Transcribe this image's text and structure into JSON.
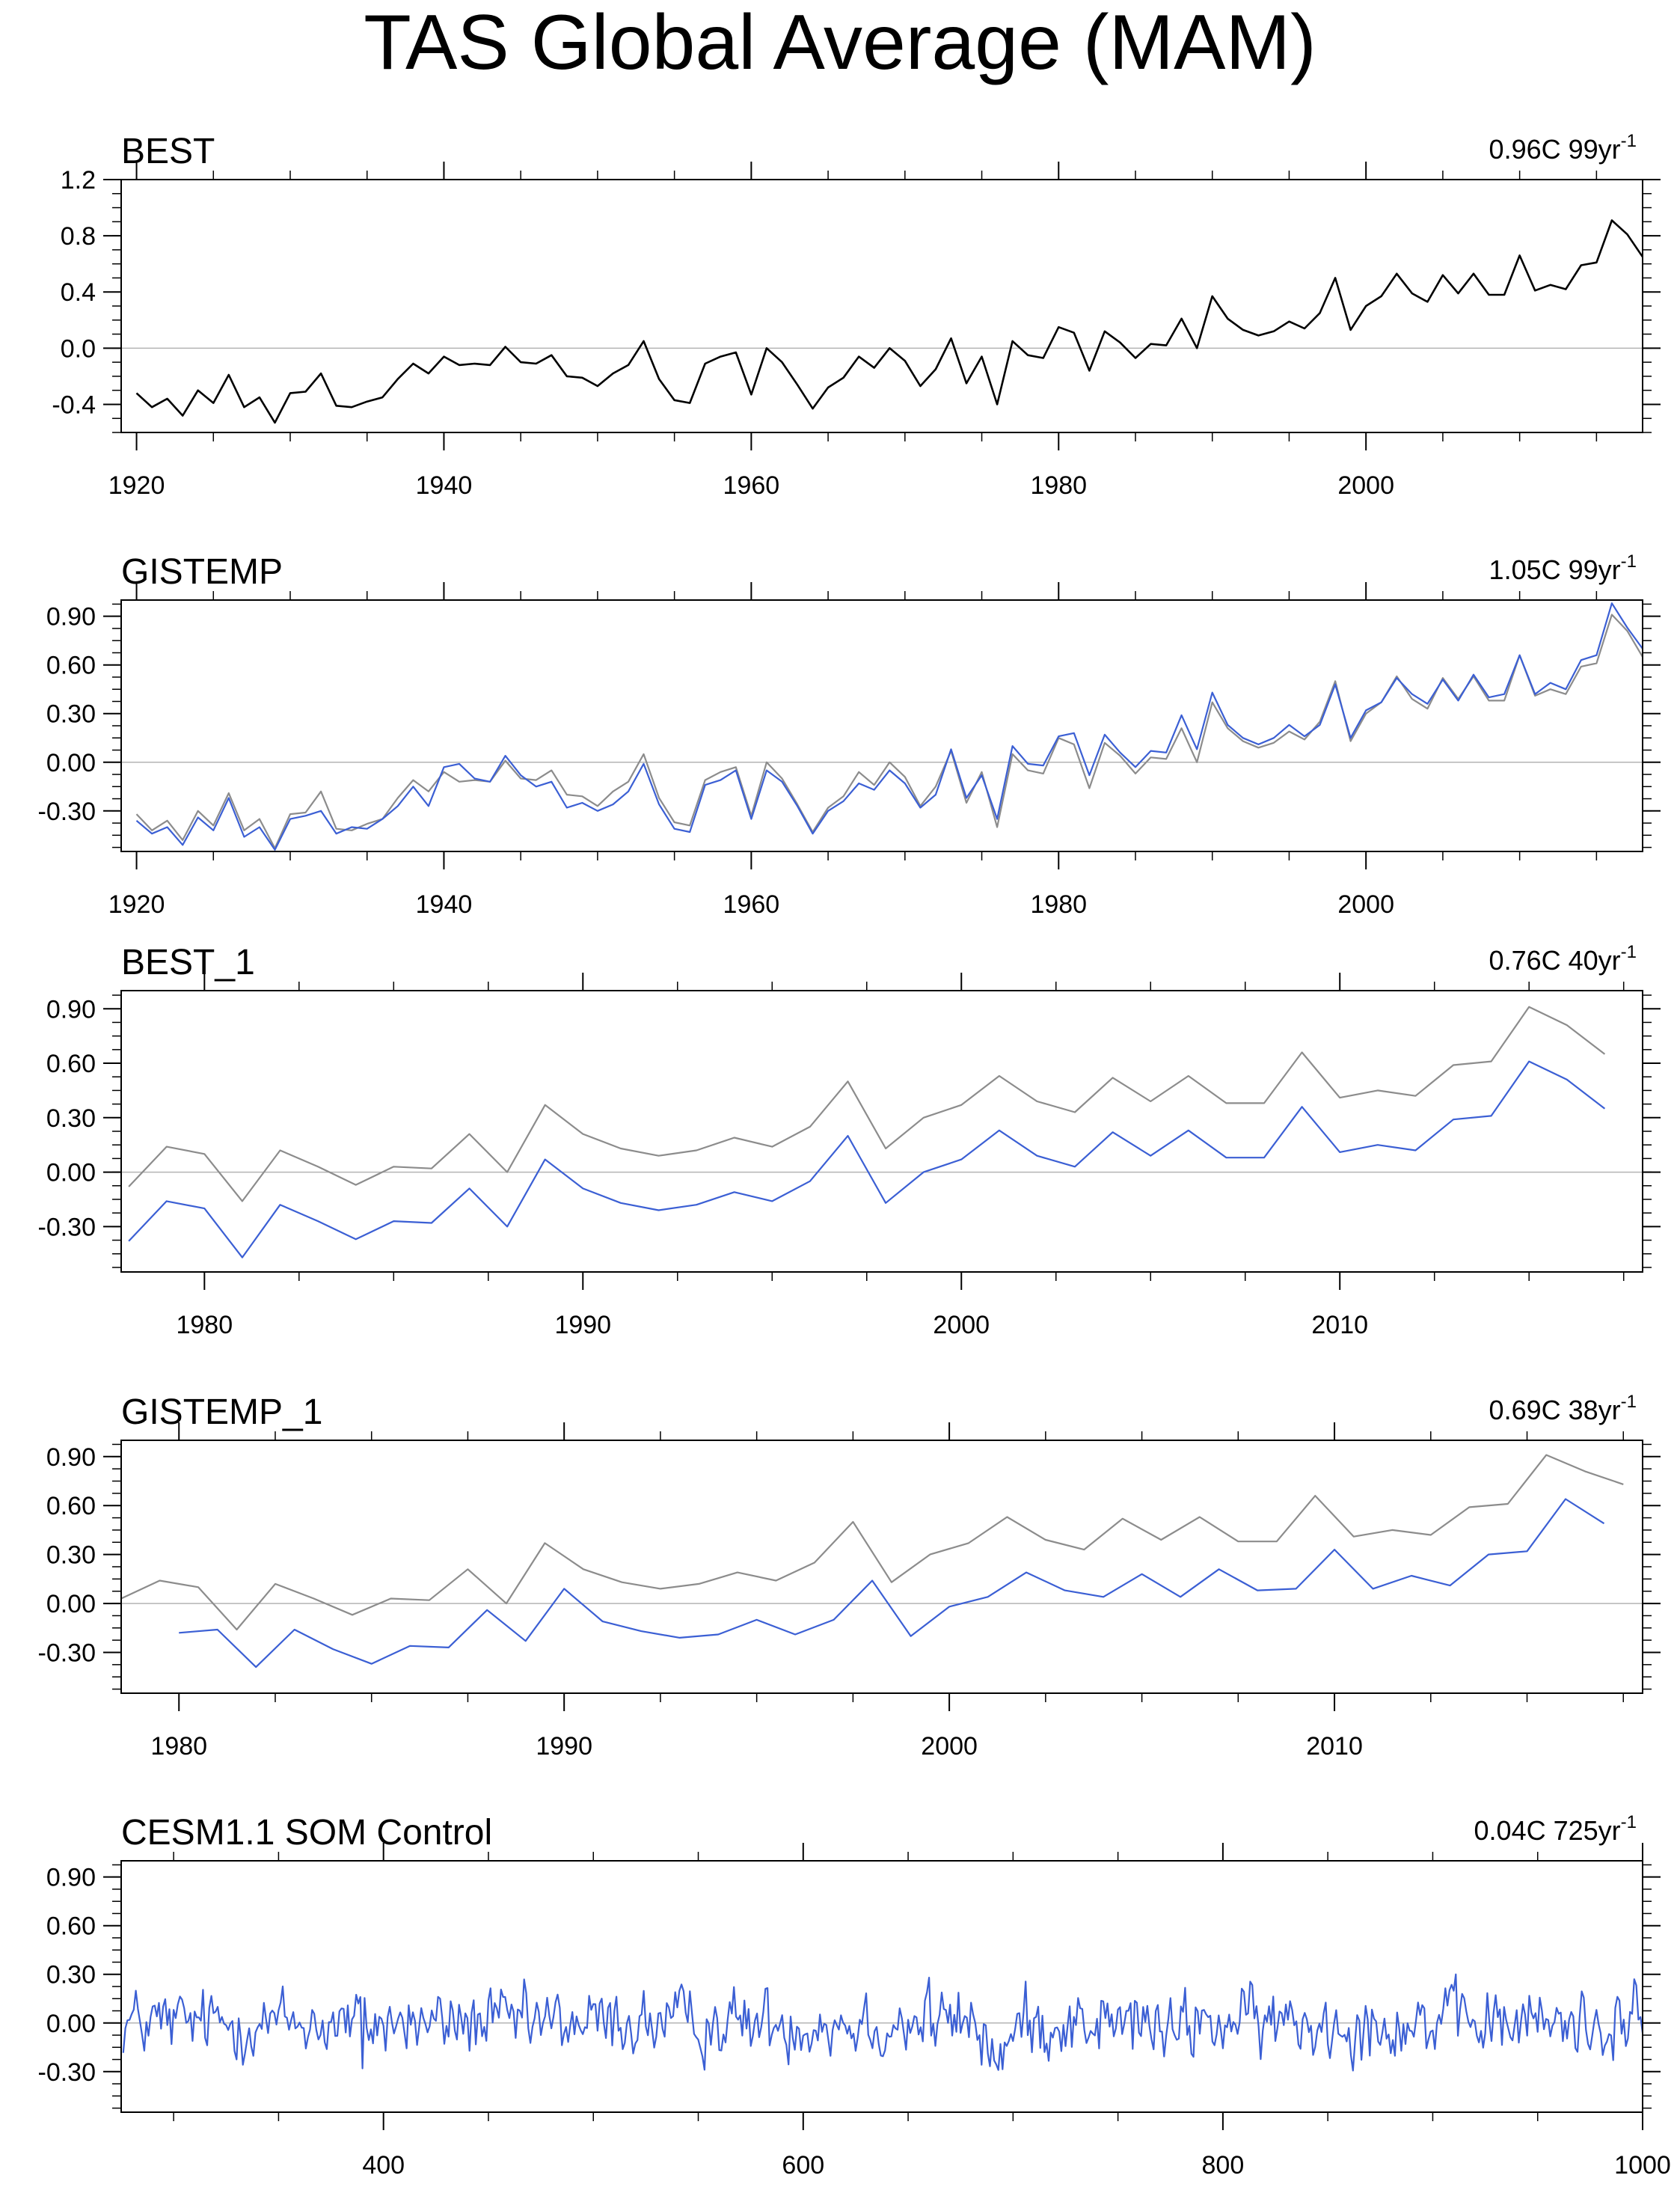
{
  "title": "TAS Global Average (MAM)",
  "colors": {
    "obs": "#000000",
    "ref": "#8c8c8c",
    "blue": "#3b5fd4",
    "zero": "#b4b4b4",
    "frame": "#000000"
  },
  "chart_data": [
    {
      "type": "line",
      "title": "BEST",
      "trend": "0.96C 99yr",
      "trend_sup": "-1",
      "xlim": [
        1919,
        2018
      ],
      "ylim": [
        -0.6,
        1.2
      ],
      "xticks": [
        1920,
        1940,
        1960,
        1980,
        2000
      ],
      "yticks": [
        -0.4,
        0.0,
        0.4,
        0.8,
        1.2
      ],
      "ytick_labels": [
        "-0.4",
        "0.0",
        "0.4",
        "0.8",
        "1.2"
      ],
      "x_start": 1920,
      "series": [
        {
          "name": "BEST",
          "color": "obs",
          "values": [
            -0.32,
            -0.42,
            -0.36,
            -0.48,
            -0.3,
            -0.39,
            -0.19,
            -0.42,
            -0.35,
            -0.53,
            -0.32,
            -0.31,
            -0.18,
            -0.41,
            -0.42,
            -0.38,
            -0.35,
            -0.22,
            -0.11,
            -0.18,
            -0.06,
            -0.12,
            -0.11,
            -0.12,
            0.01,
            -0.1,
            -0.11,
            -0.05,
            -0.2,
            -0.21,
            -0.27,
            -0.18,
            -0.12,
            0.05,
            -0.22,
            -0.37,
            -0.39,
            -0.11,
            -0.06,
            -0.03,
            -0.33,
            0.0,
            -0.1,
            -0.26,
            -0.43,
            -0.28,
            -0.21,
            -0.06,
            -0.14,
            0.0,
            -0.09,
            -0.27,
            -0.15,
            0.07,
            -0.25,
            -0.06,
            -0.4,
            0.05,
            -0.05,
            -0.07,
            0.15,
            0.11,
            -0.16,
            0.12,
            0.04,
            -0.07,
            0.03,
            0.02,
            0.21,
            0.0,
            0.37,
            0.21,
            0.13,
            0.09,
            0.12,
            0.19,
            0.14,
            0.25,
            0.5,
            0.13,
            0.3,
            0.37,
            0.53,
            0.39,
            0.33,
            0.52,
            0.39,
            0.53,
            0.38,
            0.38,
            0.66,
            0.41,
            0.45,
            0.42,
            0.59,
            0.61,
            0.91,
            0.81,
            0.65
          ]
        }
      ]
    },
    {
      "type": "line",
      "title": "GISTEMP",
      "trend": "1.05C 99yr",
      "trend_sup": "-1",
      "xlim": [
        1919,
        2018
      ],
      "ylim": [
        -0.55,
        1.0
      ],
      "xticks": [
        1920,
        1940,
        1960,
        1980,
        2000
      ],
      "yticks": [
        -0.3,
        0.0,
        0.3,
        0.6,
        0.9
      ],
      "ytick_labels": [
        "-0.30",
        "0.00",
        "0.30",
        "0.60",
        "0.90"
      ],
      "x_start": 1920,
      "series": [
        {
          "name": "BEST",
          "color": "ref",
          "values": [
            -0.32,
            -0.42,
            -0.36,
            -0.48,
            -0.3,
            -0.39,
            -0.19,
            -0.42,
            -0.35,
            -0.53,
            -0.32,
            -0.31,
            -0.18,
            -0.41,
            -0.42,
            -0.38,
            -0.35,
            -0.22,
            -0.11,
            -0.18,
            -0.06,
            -0.12,
            -0.11,
            -0.12,
            0.01,
            -0.1,
            -0.11,
            -0.05,
            -0.2,
            -0.21,
            -0.27,
            -0.18,
            -0.12,
            0.05,
            -0.22,
            -0.37,
            -0.39,
            -0.11,
            -0.06,
            -0.03,
            -0.33,
            0.0,
            -0.1,
            -0.26,
            -0.43,
            -0.28,
            -0.21,
            -0.06,
            -0.14,
            0.0,
            -0.09,
            -0.27,
            -0.15,
            0.07,
            -0.25,
            -0.06,
            -0.4,
            0.05,
            -0.05,
            -0.07,
            0.15,
            0.11,
            -0.16,
            0.12,
            0.04,
            -0.07,
            0.03,
            0.02,
            0.21,
            0.0,
            0.37,
            0.21,
            0.13,
            0.09,
            0.12,
            0.19,
            0.14,
            0.25,
            0.5,
            0.13,
            0.3,
            0.37,
            0.53,
            0.39,
            0.33,
            0.52,
            0.39,
            0.53,
            0.38,
            0.38,
            0.66,
            0.41,
            0.45,
            0.42,
            0.59,
            0.61,
            0.91,
            0.81,
            0.65
          ]
        },
        {
          "name": "GISTEMP",
          "color": "blue",
          "values": [
            -0.36,
            -0.44,
            -0.4,
            -0.51,
            -0.34,
            -0.42,
            -0.22,
            -0.46,
            -0.4,
            -0.54,
            -0.35,
            -0.33,
            -0.3,
            -0.44,
            -0.4,
            -0.41,
            -0.35,
            -0.27,
            -0.15,
            -0.27,
            -0.03,
            -0.01,
            -0.1,
            -0.12,
            0.04,
            -0.08,
            -0.15,
            -0.12,
            -0.28,
            -0.25,
            -0.3,
            -0.26,
            -0.18,
            -0.01,
            -0.26,
            -0.41,
            -0.43,
            -0.14,
            -0.11,
            -0.05,
            -0.35,
            -0.05,
            -0.12,
            -0.27,
            -0.44,
            -0.3,
            -0.24,
            -0.13,
            -0.17,
            -0.05,
            -0.13,
            -0.28,
            -0.2,
            0.08,
            -0.22,
            -0.08,
            -0.35,
            0.1,
            -0.01,
            -0.02,
            0.16,
            0.18,
            -0.08,
            0.17,
            0.06,
            -0.03,
            0.07,
            0.06,
            0.29,
            0.08,
            0.43,
            0.23,
            0.15,
            0.11,
            0.15,
            0.23,
            0.16,
            0.23,
            0.48,
            0.15,
            0.32,
            0.37,
            0.52,
            0.42,
            0.36,
            0.51,
            0.38,
            0.54,
            0.4,
            0.42,
            0.66,
            0.42,
            0.49,
            0.45,
            0.63,
            0.66,
            0.98,
            0.83,
            0.7
          ]
        }
      ]
    },
    {
      "type": "line",
      "title": "BEST_1",
      "trend": "0.76C 40yr",
      "trend_sup": "-1",
      "xlim": [
        1977.8,
        2018
      ],
      "ylim": [
        -0.55,
        1.0
      ],
      "xticks": [
        1980,
        1990,
        2000,
        2010
      ],
      "yticks": [
        -0.3,
        0.0,
        0.3,
        0.6,
        0.9
      ],
      "ytick_labels": [
        "-0.30",
        "0.00",
        "0.30",
        "0.60",
        "0.90"
      ],
      "x_start": 1978,
      "series": [
        {
          "name": "BEST",
          "color": "ref",
          "values": [
            -0.08,
            0.14,
            0.1,
            -0.16,
            0.12,
            0.03,
            -0.07,
            0.03,
            0.02,
            0.21,
            0.0,
            0.37,
            0.21,
            0.13,
            0.09,
            0.12,
            0.19,
            0.14,
            0.25,
            0.5,
            0.13,
            0.3,
            0.37,
            0.53,
            0.39,
            0.33,
            0.52,
            0.39,
            0.53,
            0.38,
            0.38,
            0.66,
            0.41,
            0.45,
            0.42,
            0.59,
            0.61,
            0.91,
            0.81,
            0.65
          ]
        },
        {
          "name": "BEST_1",
          "color": "blue",
          "values": [
            -0.38,
            -0.16,
            -0.2,
            -0.47,
            -0.18,
            -0.27,
            -0.37,
            -0.27,
            -0.28,
            -0.09,
            -0.3,
            0.07,
            -0.09,
            -0.17,
            -0.21,
            -0.18,
            -0.11,
            -0.16,
            -0.05,
            0.2,
            -0.17,
            0.0,
            0.07,
            0.23,
            0.09,
            0.03,
            0.22,
            0.09,
            0.23,
            0.08,
            0.08,
            0.36,
            0.11,
            0.15,
            0.12,
            0.29,
            0.31,
            0.61,
            0.51,
            0.35
          ]
        }
      ]
    },
    {
      "type": "line",
      "title": "GISTEMP_1",
      "trend": "0.69C 38yr",
      "trend_sup": "-1",
      "xlim": [
        1978.5,
        2018
      ],
      "ylim": [
        -0.55,
        1.0
      ],
      "xticks": [
        1980,
        1990,
        2000,
        2010
      ],
      "yticks": [
        -0.3,
        0.0,
        0.3,
        0.6,
        0.9
      ],
      "ytick_labels": [
        "-0.30",
        "0.00",
        "0.30",
        "0.60",
        "0.90"
      ],
      "x_start": 1978.5,
      "series": [
        {
          "name": "BEST",
          "color": "ref",
          "values": [
            0.03,
            0.14,
            0.1,
            -0.16,
            0.12,
            0.03,
            -0.07,
            0.03,
            0.02,
            0.21,
            0.0,
            0.37,
            0.21,
            0.13,
            0.09,
            0.12,
            0.19,
            0.14,
            0.25,
            0.5,
            0.13,
            0.3,
            0.37,
            0.53,
            0.39,
            0.33,
            0.52,
            0.39,
            0.53,
            0.38,
            0.38,
            0.66,
            0.41,
            0.45,
            0.42,
            0.59,
            0.61,
            0.91,
            0.81,
            0.73
          ]
        },
        {
          "name": "GISTEMP_1",
          "color": "blue",
          "x0": 1980,
          "values": [
            -0.18,
            -0.16,
            -0.39,
            -0.16,
            -0.28,
            -0.37,
            -0.26,
            -0.27,
            -0.04,
            -0.23,
            0.09,
            -0.11,
            -0.17,
            -0.21,
            -0.19,
            -0.1,
            -0.19,
            -0.1,
            0.14,
            -0.2,
            -0.02,
            0.04,
            0.19,
            0.08,
            0.04,
            0.18,
            0.04,
            0.21,
            0.08,
            0.09,
            0.33,
            0.09,
            0.17,
            0.11,
            0.3,
            0.32,
            0.64,
            0.49
          ]
        }
      ]
    },
    {
      "type": "line",
      "title": "CESM1.1 SOM Control",
      "trend": "0.04C 725yr",
      "trend_sup": "-1",
      "xlim": [
        275,
        1000
      ],
      "ylim": [
        -0.55,
        1.0
      ],
      "xticks": [
        400,
        600,
        800,
        1000
      ],
      "yticks": [
        -0.3,
        0.0,
        0.3,
        0.6,
        0.9
      ],
      "ytick_labels": [
        "-0.30",
        "0.00",
        "0.30",
        "0.60",
        "0.90"
      ],
      "series": [
        {
          "name": "CESM1.1 SOM Control",
          "color": "blue",
          "x0": 276,
          "dx": 1,
          "n": 725,
          "mean": 0.0,
          "amplitude": 0.1,
          "min": -0.3,
          "max": 0.3,
          "events": [
            [
              660,
              0.28
            ],
            [
              693,
              -0.29
            ],
            [
              390,
              -0.28
            ],
            [
              996,
              0.27
            ]
          ]
        }
      ]
    }
  ]
}
